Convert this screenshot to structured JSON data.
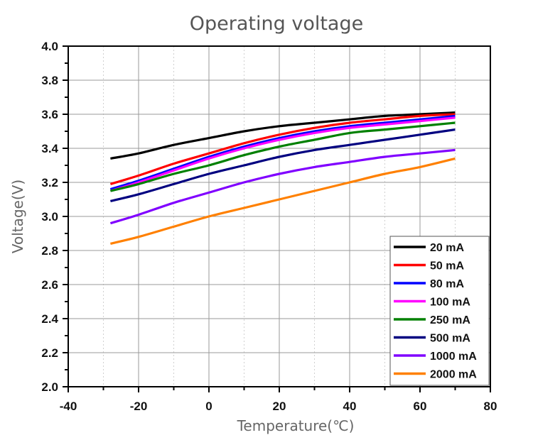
{
  "chart_data": {
    "type": "line",
    "title": "Operating voltage",
    "xlabel": "Temperature(℃)",
    "ylabel": "Voltage(V)",
    "xlim": [
      -40,
      80
    ],
    "ylim": [
      2.0,
      4.0
    ],
    "xticks": [
      -40,
      -20,
      0,
      20,
      40,
      60,
      80
    ],
    "xtick_labels": [
      "-40",
      "-20",
      "0",
      "20",
      "40",
      "60",
      "80"
    ],
    "yticks": [
      2.0,
      2.2,
      2.4,
      2.6,
      2.8,
      3.0,
      3.2,
      3.4,
      3.6,
      3.8,
      4.0
    ],
    "ytick_labels": [
      "2.0",
      "2.2",
      "2.4",
      "2.6",
      "2.8",
      "3.0",
      "3.2",
      "3.4",
      "3.6",
      "3.8",
      "4.0"
    ],
    "grid": true,
    "legend_position": "bottom-right",
    "x": [
      -28,
      -20,
      -10,
      0,
      10,
      20,
      30,
      40,
      50,
      60,
      70
    ],
    "series": [
      {
        "name": "20 mA",
        "color": "#000000",
        "values": [
          3.34,
          3.37,
          3.42,
          3.46,
          3.5,
          3.53,
          3.55,
          3.57,
          3.59,
          3.6,
          3.61
        ]
      },
      {
        "name": "50 mA",
        "color": "#ff0000",
        "values": [
          3.19,
          3.24,
          3.31,
          3.37,
          3.43,
          3.48,
          3.52,
          3.55,
          3.57,
          3.59,
          3.6
        ]
      },
      {
        "name": "80 mA",
        "color": "#0000ff",
        "values": [
          3.16,
          3.21,
          3.28,
          3.35,
          3.41,
          3.46,
          3.5,
          3.53,
          3.55,
          3.57,
          3.59
        ]
      },
      {
        "name": "100 mA",
        "color": "#ff00ff",
        "values": [
          3.15,
          3.2,
          3.27,
          3.34,
          3.4,
          3.45,
          3.49,
          3.52,
          3.54,
          3.56,
          3.58
        ]
      },
      {
        "name": "250 mA",
        "color": "#008000",
        "values": [
          3.15,
          3.19,
          3.25,
          3.3,
          3.36,
          3.41,
          3.45,
          3.49,
          3.51,
          3.53,
          3.55
        ]
      },
      {
        "name": "500 mA",
        "color": "#000080",
        "values": [
          3.09,
          3.13,
          3.19,
          3.25,
          3.3,
          3.35,
          3.39,
          3.42,
          3.45,
          3.48,
          3.51
        ]
      },
      {
        "name": "1000 mA",
        "color": "#8000ff",
        "values": [
          2.96,
          3.01,
          3.08,
          3.14,
          3.2,
          3.25,
          3.29,
          3.32,
          3.35,
          3.37,
          3.39
        ]
      },
      {
        "name": "2000 mA",
        "color": "#ff8000",
        "values": [
          2.84,
          2.88,
          2.94,
          3.0,
          3.05,
          3.1,
          3.15,
          3.2,
          3.25,
          3.29,
          3.34
        ]
      }
    ]
  }
}
